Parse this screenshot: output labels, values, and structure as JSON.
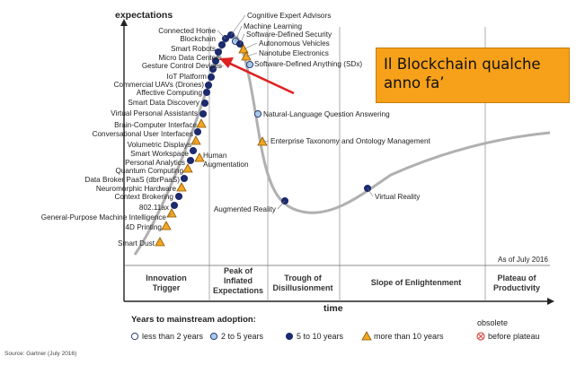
{
  "chart_data": {
    "type": "scatter",
    "title": "",
    "ylabel": "expectations",
    "xlabel": "time",
    "phases": [
      "Innovation Trigger",
      "Peak of Inflated Expectations",
      "Trough of Disillusionment",
      "Slope of Enlightenment",
      "Plateau of Productivity"
    ],
    "as_of": "As of July 2016",
    "legend_title": "Years to mainstream adoption:",
    "legend": [
      {
        "key": "lt2",
        "label": "less than 2 years",
        "color": "#ffffff"
      },
      {
        "key": "2to5",
        "label": "2 to 5 years",
        "color": "#a8c8e8"
      },
      {
        "key": "5to10",
        "label": "5 to 10 years",
        "color": "#1c2a6e"
      },
      {
        "key": "gt10",
        "label": "more than 10 years",
        "color": "#f5a623"
      },
      {
        "key": "obsolete",
        "label_line1": "obsolete",
        "label_line2": "before plateau",
        "color": "#d9534f"
      }
    ],
    "source": "Source: Gartner (July 2016)",
    "technologies": [
      {
        "name": "Smart Dust",
        "status": "gt10"
      },
      {
        "name": "4D Printing",
        "status": "gt10"
      },
      {
        "name": "General-Purpose Machine Intelligence",
        "status": "gt10"
      },
      {
        "name": "802.11ax",
        "status": "5to10"
      },
      {
        "name": "Context Brokering",
        "status": "5to10"
      },
      {
        "name": "Neuromorphic Hardware",
        "status": "gt10"
      },
      {
        "name": "Data Broker PaaS (dbrPaaS)",
        "status": "5to10"
      },
      {
        "name": "Quantum Computing",
        "status": "gt10"
      },
      {
        "name": "Personal Analytics",
        "status": "5to10"
      },
      {
        "name": "Smart Workspace",
        "status": "5to10"
      },
      {
        "name": "Volumetric Displays",
        "status": "gt10"
      },
      {
        "name": "Conversational User Interfaces",
        "status": "5to10"
      },
      {
        "name": "Human Augmentation",
        "status": "gt10"
      },
      {
        "name": "Brain-Computer Interface",
        "status": "gt10"
      },
      {
        "name": "Virtual Personal Assistants",
        "status": "5to10"
      },
      {
        "name": "Smart Data Discovery",
        "status": "5to10"
      },
      {
        "name": "Affective Computing",
        "status": "5to10"
      },
      {
        "name": "Commercial UAVs (Drones)",
        "status": "5to10"
      },
      {
        "name": "IoT Platform",
        "status": "5to10"
      },
      {
        "name": "Gesture Control Devices",
        "status": "5to10"
      },
      {
        "name": "Micro Data Centers",
        "status": "5to10"
      },
      {
        "name": "Smart Robots",
        "status": "5to10"
      },
      {
        "name": "Blockchain",
        "status": "5to10"
      },
      {
        "name": "Connected Home",
        "status": "5to10"
      },
      {
        "name": "Cognitive Expert Advisors",
        "status": "5to10"
      },
      {
        "name": "Machine Learning",
        "status": "2to5"
      },
      {
        "name": "Software-Defined Security",
        "status": "5to10"
      },
      {
        "name": "Autonomous Vehicles",
        "status": "gt10"
      },
      {
        "name": "Nanotube Electronics",
        "status": "gt10"
      },
      {
        "name": "Software-Defined Anything (SDx)",
        "status": "2to5"
      },
      {
        "name": "Natural-Language Question Answering",
        "status": "2to5"
      },
      {
        "name": "Enterprise Taxonomy and Ontology Management",
        "status": "gt10"
      },
      {
        "name": "Augmented Reality",
        "status": "5to10"
      },
      {
        "name": "Virtual Reality",
        "status": "5to10"
      }
    ]
  },
  "annotation": {
    "text": "Il Blockchain qualche anno fa’",
    "line1": "Il Blockchain qualche",
    "line2": "anno fa’",
    "points_to": "Blockchain",
    "arrow_color": "#e02020"
  }
}
